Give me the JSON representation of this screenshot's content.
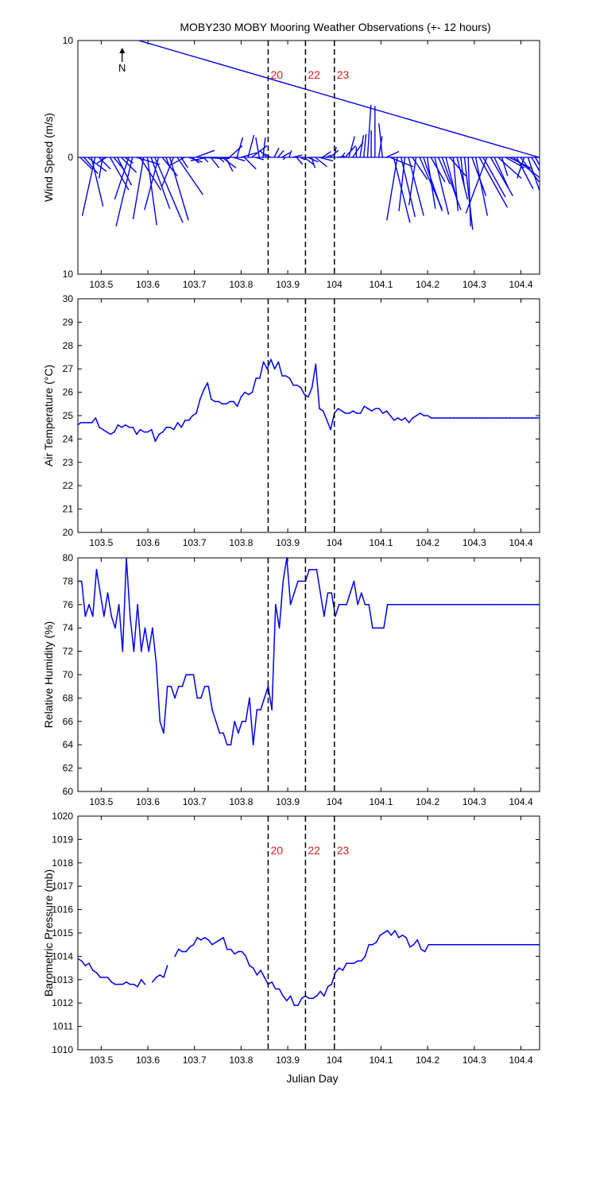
{
  "title": "MOBY230 MOBY Mooring Weather Observations (+- 12 hours)",
  "north_indicator": "N",
  "xlabel": "Julian Day",
  "x_ticks": [
    103.5,
    103.6,
    103.7,
    103.8,
    103.9,
    104,
    104.1,
    104.2,
    104.3,
    104.4
  ],
  "x_tick_labels": [
    "103.5",
    "103.6",
    "103.7",
    "103.8",
    "103.9",
    "104",
    "104.1",
    "104.2",
    "104.3",
    "104.4"
  ],
  "xlim": [
    103.45,
    104.44
  ],
  "event_markers": [
    {
      "x": 103.858,
      "label": "20"
    },
    {
      "x": 103.938,
      "label": "22"
    },
    {
      "x": 104.0,
      "label": "23"
    }
  ],
  "colors": {
    "series": "#0000ee",
    "marker_text": "#cc2222",
    "axis": "#000000"
  },
  "chart_data": [
    {
      "type": "line",
      "id": "wind",
      "ylabel": "Wind Speed (m/s)",
      "ylim": [
        -10,
        10
      ],
      "y_ticks": [
        -10,
        0,
        10
      ],
      "y_tick_labels": [
        "10",
        "0",
        "10"
      ],
      "note": "stick plot: each stick starts on the zero line; u = east component, v = north component (m/s)",
      "x": [
        103.455,
        103.463,
        103.471,
        103.479,
        103.487,
        103.495,
        103.503,
        103.511,
        103.519,
        103.527,
        103.535,
        103.543,
        103.551,
        103.559,
        103.567,
        103.575,
        103.583,
        103.591,
        103.599,
        103.607,
        103.615,
        103.623,
        103.631,
        103.639,
        103.647,
        103.655,
        103.663,
        103.671,
        103.679,
        103.687,
        103.695,
        103.703,
        103.711,
        103.719,
        103.727,
        103.735,
        103.743,
        103.751,
        103.759,
        103.767,
        103.775,
        103.783,
        103.791,
        103.799,
        103.807,
        103.815,
        103.823,
        103.831,
        103.839,
        103.847,
        103.855,
        103.863,
        103.871,
        103.879,
        103.887,
        103.895,
        103.903,
        103.911,
        103.919,
        103.927,
        103.935,
        103.943,
        103.951,
        103.959,
        103.967,
        103.975,
        103.983,
        103.991,
        103.999,
        104.007,
        104.015,
        104.023,
        104.031,
        104.039,
        104.047,
        104.055,
        104.063,
        104.071,
        104.079,
        104.087,
        104.095,
        104.103,
        104.111,
        104.119,
        104.127,
        104.135,
        104.143,
        104.151,
        104.159,
        104.167,
        104.175,
        104.183,
        104.191,
        104.199,
        104.207,
        104.215,
        104.223,
        104.231,
        104.239,
        104.247,
        104.255,
        104.263,
        104.271,
        104.279,
        104.287,
        104.295,
        104.303,
        104.311,
        104.319,
        104.327,
        104.335,
        104.343,
        104.351,
        104.359,
        104.367,
        104.375,
        104.383,
        104.391,
        104.399,
        104.407,
        104.415,
        104.423,
        104.431,
        104.439
      ],
      "u": [
        1.0,
        1.2,
        1.6,
        1.0,
        -1.1,
        1.0,
        -0.3,
        -0.8,
        1.6,
        0.9,
        1.2,
        1.3,
        0.7,
        -1.2,
        -1.4,
        2.0,
        1.8,
        -0.9,
        0.8,
        1.6,
        2.4,
        -1.2,
        1.3,
        0.3,
        1.6,
        -1.0,
        2.2,
        0.6,
        -1.1,
        1.2,
        0.6,
        1.6,
        2.0,
        0.4,
        -1.4,
        0.7,
        1.3,
        0.5,
        1.2,
        0.6,
        1.1,
        1.0,
        0.5,
        1.4,
        1.0,
        0.5,
        1.3,
        0.7,
        -0.3,
        0.2,
        -0.6,
        -0.5,
        0.4,
        0.5,
        0.7,
        -0.2,
        0.2,
        0.8,
        0.5,
        0.4,
        0.8,
        0.9,
        0.3,
        1.0,
        1.2,
        0.7,
        0.4,
        0.7,
        0.2,
        0.6,
        0.3,
        0.9,
        0.5,
        0.9,
        0.0,
        0.3,
        0.2,
        0.3,
        0.0,
        0.0,
        0.3,
        -0.3,
        1.1,
        2.0,
        1.4,
        -0.9,
        1.2,
        -0.5,
        1.3,
        1.3,
        -0.6,
        1.9,
        1.6,
        0.7,
        1.2,
        1.2,
        1.0,
        1.6,
        1.0,
        1.4,
        0.4,
        0.9,
        0.3,
        0.7,
        0.2,
        1.2,
        1.0,
        2.4,
        1.9,
        -1.8,
        1.9,
        1.2,
        2.0,
        0.5,
        1.6,
        2.0,
        2.5,
        1.4,
        1.6,
        -0.6,
        1.3,
        1.6,
        1.3
      ],
      "v": [
        -1.0,
        -1.4,
        -1.2,
        -4.2,
        -5.0,
        -1.0,
        -1.8,
        -0.5,
        -2.8,
        -1.1,
        -2.4,
        -1.3,
        -0.5,
        -3.6,
        -5.9,
        -0.6,
        -2.8,
        -5.3,
        -5.8,
        -4.4,
        -5.6,
        -4.5,
        -1.6,
        -0.8,
        -5.4,
        -2.5,
        -3.2,
        -0.9,
        -0.6,
        -0.4,
        -0.5,
        0.6,
        -0.1,
        -0.4,
        -0.3,
        -0.9,
        -0.1,
        -0.4,
        -0.9,
        -1.2,
        1.0,
        -0.3,
        1.7,
        0.4,
        -1.0,
        1.9,
        1.0,
        -0.2,
        1.7,
        1.7,
        0.6,
        0.3,
        0.8,
        0.6,
        0.4,
        -0.2,
        0.6,
        0.2,
        -0.6,
        -0.2,
        -0.6,
        -0.4,
        -0.9,
        -0.8,
        -0.3,
        0.5,
        0.2,
        0.6,
        0.9,
        0.1,
        0.4,
        1.0,
        1.8,
        1.3,
        0.9,
        1.9,
        2.0,
        4.5,
        2.3,
        4.4,
        1.8,
        2.9,
        0.5,
        -0.8,
        -5.6,
        -5.4,
        -5.1,
        -4.6,
        -5.0,
        -1.9,
        -4.1,
        -4.4,
        -4.6,
        -4.4,
        -2.1,
        -4.9,
        -2.3,
        -4.5,
        -3.8,
        -1.6,
        -4.6,
        -3.6,
        -2.5,
        -6.2,
        -5.9,
        -3.3,
        -5.0,
        -4.3,
        -3.4,
        -4.8,
        -3.3,
        -2.6,
        -1.8,
        -1.6,
        -0.9,
        -1.0,
        -1.9,
        -2.7,
        -2.1,
        -1.8,
        -3.7,
        -2.8,
        -2.4
      ]
    },
    {
      "type": "line",
      "id": "temp",
      "ylabel": "Air Temperature (°C)",
      "ylim": [
        20,
        30
      ],
      "y_ticks": [
        20,
        21,
        22,
        23,
        24,
        25,
        26,
        27,
        28,
        29,
        30
      ],
      "y_tick_labels": [
        "20",
        "21",
        "22",
        "23",
        "24",
        "25",
        "26",
        "27",
        "28",
        "29",
        "30"
      ],
      "x": [
        103.45,
        103.456,
        103.464,
        103.472,
        103.48,
        103.488,
        103.496,
        103.504,
        103.512,
        103.52,
        103.528,
        103.536,
        103.544,
        103.552,
        103.56,
        103.568,
        103.576,
        103.584,
        103.592,
        103.6,
        103.608,
        103.616,
        103.624,
        103.632,
        103.64,
        103.648,
        103.656,
        103.664,
        103.672,
        103.68,
        103.688,
        103.696,
        103.704,
        103.712,
        103.72,
        103.728,
        103.736,
        103.744,
        103.752,
        103.76,
        103.768,
        103.776,
        103.784,
        103.792,
        103.8,
        103.808,
        103.816,
        103.824,
        103.832,
        103.84,
        103.848,
        103.856,
        103.864,
        103.872,
        103.88,
        103.888,
        103.896,
        103.904,
        103.912,
        103.92,
        103.928,
        103.936,
        103.944,
        103.952,
        103.96,
        103.968,
        103.976,
        103.984,
        103.992,
        104.0,
        104.008,
        104.016,
        104.024,
        104.032,
        104.04,
        104.048,
        104.056,
        104.064,
        104.072,
        104.08,
        104.088,
        104.096,
        104.104,
        104.112,
        104.12,
        104.128,
        104.136,
        104.144,
        104.152,
        104.16,
        104.168,
        104.176,
        104.184,
        104.192,
        104.2,
        104.208,
        104.216,
        104.224,
        104.232,
        104.24,
        104.248,
        104.256,
        104.264,
        104.272,
        104.28,
        104.288,
        104.296,
        104.304,
        104.312,
        104.32,
        104.328,
        104.336,
        104.344,
        104.352,
        104.36,
        104.368,
        104.376,
        104.384,
        104.392,
        104.4,
        104.408,
        104.416,
        104.424,
        104.432,
        104.44
      ],
      "values": [
        24.6,
        24.7,
        24.7,
        24.7,
        24.7,
        24.9,
        24.5,
        24.4,
        24.3,
        24.2,
        24.3,
        24.6,
        24.5,
        24.6,
        24.5,
        24.5,
        24.2,
        24.4,
        24.3,
        24.3,
        24.4,
        23.9,
        24.2,
        24.3,
        24.5,
        24.5,
        24.4,
        24.7,
        24.5,
        24.8,
        24.8,
        25.0,
        25.1,
        25.7,
        26.1,
        26.4,
        25.7,
        25.6,
        25.6,
        25.5,
        25.5,
        25.6,
        25.6,
        25.4,
        25.8,
        26.0,
        25.9,
        26.0,
        26.6,
        26.6,
        27.3,
        27.0,
        27.4,
        27.0,
        27.3,
        26.7,
        26.7,
        26.6,
        26.3,
        26.3,
        26.2,
        25.9,
        25.8,
        26.2,
        27.2,
        25.3,
        25.2,
        24.8,
        24.4,
        25.1,
        25.3,
        25.2,
        25.1,
        25.1,
        25.2,
        25.1,
        25.1,
        25.4,
        25.3,
        25.2,
        25.3,
        25.3,
        25.1,
        25.2,
        25.0,
        24.8,
        24.9,
        24.8,
        24.9,
        24.7,
        24.9,
        25.0,
        25.1,
        25.0,
        25.0,
        24.9,
        24.9,
        24.9,
        24.9,
        24.9,
        24.9,
        24.9,
        24.9,
        24.9,
        24.9,
        24.9,
        24.9,
        24.9,
        24.9,
        24.9,
        24.9,
        24.9,
        24.9,
        24.9,
        24.9,
        24.9,
        24.9,
        24.9,
        24.9,
        24.9,
        24.9,
        24.9,
        24.9,
        24.9,
        24.9
      ]
    },
    {
      "type": "line",
      "id": "rh",
      "ylabel": "Relative Humidity (%)",
      "ylim": [
        60,
        80
      ],
      "y_ticks": [
        60,
        62,
        64,
        66,
        68,
        70,
        72,
        74,
        76,
        78,
        80
      ],
      "y_tick_labels": [
        "60",
        "62",
        "64",
        "66",
        "68",
        "70",
        "72",
        "74",
        "76",
        "78",
        "80"
      ],
      "x": [
        103.45,
        103.458,
        103.466,
        103.474,
        103.482,
        103.49,
        103.498,
        103.506,
        103.514,
        103.522,
        103.53,
        103.538,
        103.546,
        103.554,
        103.562,
        103.57,
        103.578,
        103.586,
        103.594,
        103.602,
        103.61,
        103.618,
        103.626,
        103.634,
        103.642,
        103.65,
        103.658,
        103.666,
        103.674,
        103.682,
        103.69,
        103.698,
        103.706,
        103.714,
        103.722,
        103.73,
        103.738,
        103.746,
        103.754,
        103.762,
        103.77,
        103.778,
        103.786,
        103.794,
        103.802,
        103.81,
        103.818,
        103.826,
        103.834,
        103.842,
        103.85,
        103.858,
        103.866,
        103.874,
        103.882,
        103.89,
        103.898,
        103.906,
        103.914,
        103.922,
        103.93,
        103.938,
        103.946,
        103.954,
        103.962,
        103.97,
        103.978,
        103.986,
        103.994,
        104.002,
        104.01,
        104.018,
        104.026,
        104.034,
        104.042,
        104.05,
        104.058,
        104.066,
        104.074,
        104.082,
        104.09,
        104.098,
        104.106,
        104.114,
        104.122,
        104.13,
        104.138,
        104.146,
        104.154,
        104.162,
        104.17,
        104.178,
        104.186,
        104.194,
        104.202,
        104.21,
        104.218,
        104.226,
        104.234,
        104.242,
        104.25,
        104.258,
        104.266,
        104.274,
        104.282,
        104.29,
        104.298,
        104.306,
        104.314,
        104.322,
        104.33,
        104.338,
        104.346,
        104.354,
        104.362,
        104.37,
        104.378,
        104.386,
        104.394,
        104.402,
        104.41,
        104.418,
        104.426,
        104.434,
        104.44
      ],
      "values": [
        78,
        78,
        75,
        76,
        75,
        79,
        77,
        75,
        77,
        75,
        74,
        76,
        72,
        80,
        75,
        72,
        76,
        72,
        74,
        72,
        74,
        71,
        66,
        65,
        69,
        69,
        68,
        69,
        69,
        70,
        70,
        70,
        68,
        68,
        69,
        69,
        67,
        66,
        65,
        65,
        64,
        64,
        66,
        65,
        66,
        66,
        68,
        64,
        67,
        67,
        68,
        69,
        67,
        76,
        74,
        78,
        80,
        76,
        77,
        78,
        78,
        78,
        79,
        79,
        79,
        77,
        75,
        77,
        77,
        75,
        76,
        76,
        76,
        77,
        78,
        76,
        77,
        76,
        76,
        74,
        74,
        74,
        74,
        76,
        76,
        76,
        76,
        76,
        76,
        76,
        76,
        76,
        76,
        76,
        76,
        76,
        76,
        76,
        76,
        76,
        76,
        76,
        76,
        76,
        76,
        76,
        76,
        76,
        76,
        76,
        76,
        76,
        76,
        76,
        76,
        76,
        76,
        76,
        76,
        76,
        76,
        76,
        76,
        76,
        76
      ]
    },
    {
      "type": "line",
      "id": "pres",
      "ylabel": "Barometric Pressure (mb)",
      "ylim": [
        1010,
        1020
      ],
      "y_ticks": [
        1010,
        1011,
        1012,
        1013,
        1014,
        1015,
        1016,
        1017,
        1018,
        1019,
        1020
      ],
      "y_tick_labels": [
        "1010",
        "1011",
        "1012",
        "1013",
        "1014",
        "1015",
        "1016",
        "1017",
        "1018",
        "1019",
        "1020"
      ],
      "x": [
        103.45,
        103.458,
        103.466,
        103.474,
        103.482,
        103.49,
        103.498,
        103.506,
        103.514,
        103.522,
        103.53,
        103.538,
        103.546,
        103.554,
        103.562,
        103.57,
        103.578,
        103.586,
        103.594,
        103.602,
        103.61,
        103.618,
        103.626,
        103.634,
        103.642,
        null,
        103.658,
        103.666,
        103.674,
        103.682,
        103.69,
        103.698,
        103.706,
        103.714,
        103.722,
        103.73,
        103.738,
        103.746,
        103.754,
        103.762,
        103.77,
        103.778,
        103.786,
        103.794,
        103.802,
        103.81,
        103.818,
        103.826,
        103.834,
        103.842,
        103.85,
        103.858,
        103.866,
        103.874,
        103.882,
        103.89,
        103.898,
        103.906,
        103.914,
        103.922,
        103.93,
        103.938,
        103.946,
        103.954,
        103.962,
        103.97,
        103.978,
        103.986,
        103.994,
        104.002,
        104.01,
        104.018,
        104.026,
        104.034,
        104.042,
        104.05,
        104.058,
        104.066,
        104.074,
        104.082,
        104.09,
        104.098,
        104.106,
        104.114,
        104.122,
        104.13,
        104.138,
        104.146,
        104.154,
        104.162,
        104.17,
        104.178,
        104.186,
        104.194,
        104.202,
        104.21,
        104.218,
        104.226,
        104.234,
        104.242,
        104.25,
        104.258,
        104.266,
        104.274,
        104.282,
        104.29,
        104.298,
        104.306,
        104.314,
        104.322,
        104.33,
        104.338,
        104.346,
        104.354,
        104.362,
        104.37,
        104.378,
        104.386,
        104.394,
        104.402,
        104.41,
        104.418,
        104.426,
        104.434,
        104.44
      ],
      "values": [
        1013.9,
        1013.8,
        1013.6,
        1013.7,
        1013.4,
        1013.3,
        1013.1,
        1013.1,
        1013.1,
        1012.9,
        1012.8,
        1012.8,
        1012.8,
        1012.9,
        1012.8,
        1012.8,
        1012.7,
        1013.0,
        1012.8,
        null,
        1012.9,
        1013.1,
        1013.2,
        1013.1,
        1013.6,
        1013.7,
        1014.0,
        1014.3,
        1014.2,
        1014.2,
        1014.4,
        1014.5,
        1014.8,
        1014.7,
        1014.8,
        1014.7,
        1014.5,
        1014.6,
        1014.7,
        1014.8,
        1014.3,
        1014.3,
        1014.1,
        1014.2,
        1014.2,
        1014.0,
        1013.6,
        1013.5,
        1013.2,
        1013.4,
        1013.1,
        1012.8,
        1012.9,
        1012.6,
        1012.6,
        1012.3,
        1012.1,
        1012.3,
        1011.9,
        1011.9,
        1012.2,
        1012.3,
        1012.2,
        1012.2,
        1012.3,
        1012.5,
        1012.3,
        1012.7,
        1012.8,
        1013.3,
        1013.5,
        1013.4,
        1013.7,
        1013.7,
        1013.7,
        1013.8,
        1013.8,
        1014.0,
        1014.5,
        1014.5,
        1014.6,
        1014.9,
        1015.0,
        1015.1,
        1014.9,
        1015.1,
        1014.8,
        1014.9,
        1014.8,
        1014.4,
        1014.5,
        1014.7,
        1014.3,
        1014.2,
        1014.5,
        1014.5,
        1014.5,
        1014.5,
        1014.5,
        1014.5,
        1014.5,
        1014.5,
        1014.5,
        1014.5,
        1014.5,
        1014.5,
        1014.5,
        1014.5,
        1014.5,
        1014.5,
        1014.5,
        1014.5,
        1014.5,
        1014.5,
        1014.5,
        1014.5,
        1014.5,
        1014.5,
        1014.5,
        1014.5,
        1014.5,
        1014.5,
        1014.5,
        1014.5,
        1014.5
      ]
    }
  ]
}
